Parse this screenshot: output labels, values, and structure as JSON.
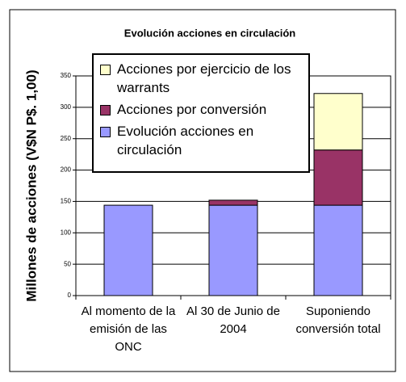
{
  "chart_data": {
    "type": "stacked_bar",
    "title": "Evolución acciones en circulación",
    "y_label": "Millones de acciones (V$N P$. 1,00)",
    "categories": [
      "Al momento de la emisión de las ONC",
      "Al 30 de Junio de 2004",
      "Suponiendo conversión total"
    ],
    "series": [
      {
        "name": "Evolución acciones en circulación",
        "color": "#9999ff",
        "values": [
          144,
          144,
          144
        ]
      },
      {
        "name": "Acciones por conversión",
        "color": "#993366",
        "values": [
          0,
          8,
          88
        ]
      },
      {
        "name": "Acciones por ejercicio de los warrants",
        "color": "#ffffcc",
        "values": [
          0,
          0,
          90
        ]
      }
    ],
    "ylim": [
      0,
      350
    ],
    "yticks": [
      0,
      50,
      100,
      150,
      200,
      250,
      300,
      350
    ],
    "grid": true
  }
}
